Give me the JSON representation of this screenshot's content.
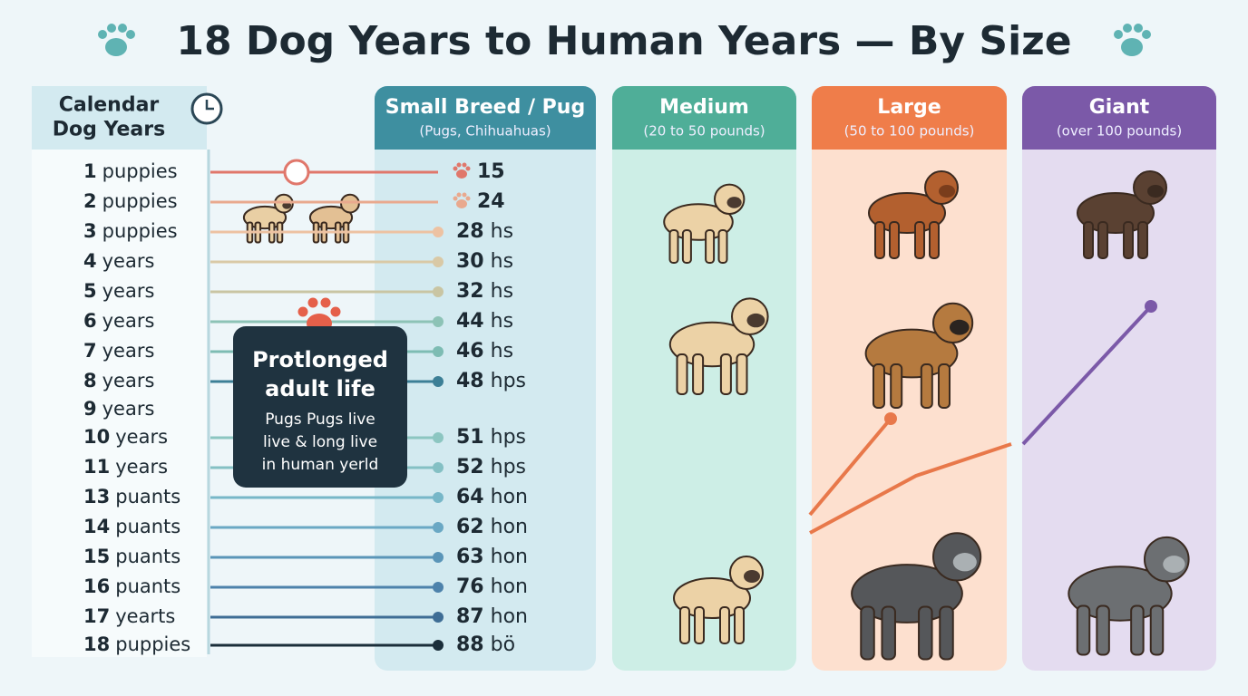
{
  "title": "18 Dog Years to Human Years — By Size",
  "left_header": "Calendar Dog Years",
  "columns": [
    {
      "title": "Small Breed / Pug",
      "subtitle": "(Pugs, Chihuahuas)"
    },
    {
      "title": "Medium",
      "subtitle": "(20 to 50 pounds)"
    },
    {
      "title": "Large",
      "subtitle": "(50 to 100 pounds)"
    },
    {
      "title": "Giant",
      "subtitle": "(over 100 pounds)"
    }
  ],
  "rows": [
    {
      "year": "1",
      "unit": "puppies",
      "human": "15"
    },
    {
      "year": "2",
      "unit": "puppies",
      "human": "24"
    },
    {
      "year": "3",
      "unit": "puppies",
      "human": "28",
      "suffix": "hs"
    },
    {
      "year": "4",
      "unit": "years",
      "human": "30",
      "suffix": "hs"
    },
    {
      "year": "5",
      "unit": "years",
      "human": "32",
      "suffix": "hs"
    },
    {
      "year": "6",
      "unit": "years",
      "human": "44",
      "suffix": "hs"
    },
    {
      "year": "7",
      "unit": "years",
      "human": "46",
      "suffix": "hs"
    },
    {
      "year": "8",
      "unit": "years",
      "human": "48",
      "suffix": "hps"
    },
    {
      "year": "9",
      "unit": "years"
    },
    {
      "year": "10",
      "unit": "years",
      "human": "51",
      "suffix": "hps"
    },
    {
      "year": "11",
      "unit": "years",
      "human": "52",
      "suffix": "hps"
    },
    {
      "year": "13",
      "unit": "puants",
      "human": "64",
      "suffix": "hon"
    },
    {
      "year": "14",
      "unit": "puants",
      "human": "62",
      "suffix": "hon"
    },
    {
      "year": "15",
      "unit": "puants",
      "human": "63",
      "suffix": "hon"
    },
    {
      "year": "16",
      "unit": "puants",
      "human": "76",
      "suffix": "hon"
    },
    {
      "year": "17",
      "unit": "yearts",
      "human": "87",
      "suffix": "hon"
    },
    {
      "year": "18",
      "unit": "puppies",
      "human": "88",
      "suffix": "bö"
    }
  ],
  "callout": {
    "title": "Protlonged adult life",
    "body": "Pugs Pugs live live & long live in human yerld"
  }
}
